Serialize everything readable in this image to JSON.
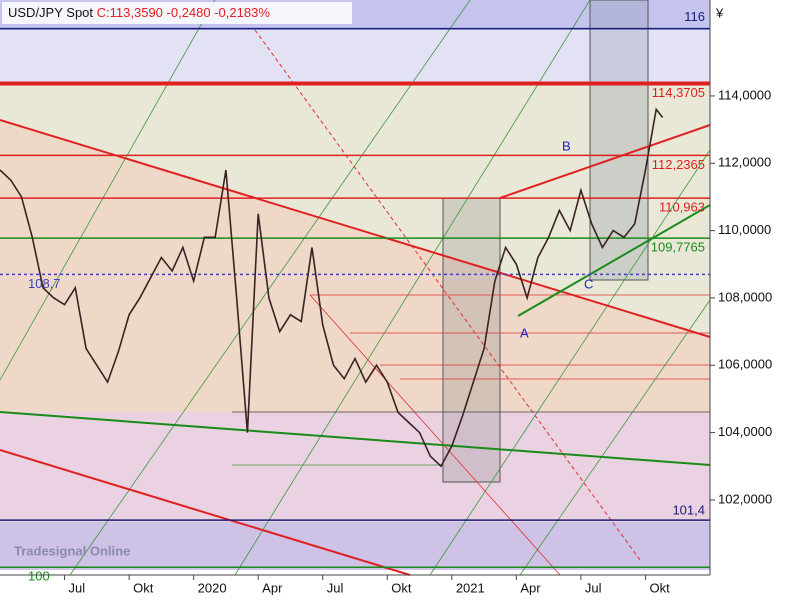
{
  "chart_data": {
    "type": "line",
    "title": "USD/JPY Spot",
    "quote": "C:113,3590 -0,2480 -0,2183%",
    "currency": "¥",
    "logo": "Tradesignal Online",
    "annotations": [
      "A",
      "B",
      "C"
    ],
    "xlim": [
      3,
      36
    ],
    "xticks": [
      {
        "value": 6,
        "label": "Jul"
      },
      {
        "value": 9,
        "label": "Okt"
      },
      {
        "value": 12,
        "label": "2020"
      },
      {
        "value": 15,
        "label": "Apr"
      },
      {
        "value": 18,
        "label": "Jul"
      },
      {
        "value": 21,
        "label": "Okt"
      },
      {
        "value": 24,
        "label": "2021"
      },
      {
        "value": 27,
        "label": "Apr"
      },
      {
        "value": 30,
        "label": "Jul"
      },
      {
        "value": 33,
        "label": "Okt"
      }
    ],
    "ylim": [
      99.77,
      116.85
    ],
    "yticks": [
      {
        "value": 102,
        "label": "102,0000"
      },
      {
        "value": 104,
        "label": "104,0000"
      },
      {
        "value": 106,
        "label": "106,0000"
      },
      {
        "value": 108,
        "label": "108,0000"
      },
      {
        "value": 110,
        "label": "110,0000"
      },
      {
        "value": 112,
        "label": "112,0000"
      },
      {
        "value": 114,
        "label": "114,0000"
      }
    ],
    "levels": [
      {
        "value": 116,
        "label": "116",
        "color": "#1a1a7a"
      },
      {
        "value": 114.3705,
        "label": "114,3705",
        "color": "#e02020"
      },
      {
        "value": 112.2365,
        "label": "112,2365",
        "color": "#e02020"
      },
      {
        "value": 110.963,
        "label": "110,963",
        "color": "#e02020"
      },
      {
        "value": 109.7765,
        "label": "109,7765",
        "color": "#1a8a1a"
      },
      {
        "value": 108.7,
        "label": "108,7",
        "color": "#4040c0"
      },
      {
        "value": 101.4,
        "label": "101,4",
        "color": "#1a1a7a"
      },
      {
        "value": 100,
        "label": "100",
        "color": "#1a8a1a"
      }
    ],
    "series": [
      {
        "name": "USD/JPY Spot",
        "color": "#3a2222",
        "x": [
          3,
          3.5,
          4,
          4.5,
          5,
          5.5,
          6,
          6.5,
          7,
          7.5,
          8,
          8.5,
          9,
          9.5,
          10,
          10.5,
          11,
          11.5,
          12,
          12.5,
          13,
          13.5,
          14,
          14.5,
          15,
          15.5,
          16,
          16.5,
          17,
          17.5,
          18,
          18.5,
          19,
          19.5,
          20,
          20.5,
          21,
          21.5,
          22,
          22.5,
          23,
          23.5,
          24,
          24.5,
          25,
          25.5,
          26,
          26.5,
          27,
          27.5,
          28,
          28.5,
          29,
          29.5,
          30,
          30.5,
          31,
          31.5,
          32,
          32.5,
          33,
          33.5,
          33.8
        ],
        "values": [
          111.8,
          111.5,
          111.0,
          109.8,
          108.3,
          108.0,
          107.8,
          108.3,
          106.5,
          106.0,
          105.5,
          106.4,
          107.5,
          108.0,
          108.6,
          109.2,
          108.8,
          109.5,
          108.5,
          109.8,
          109.8,
          111.8,
          108.0,
          104.0,
          110.5,
          108.0,
          107.0,
          107.5,
          107.3,
          109.5,
          107.2,
          106.0,
          105.6,
          106.2,
          105.5,
          106.0,
          105.5,
          104.6,
          104.3,
          104.0,
          103.3,
          103.0,
          103.6,
          104.5,
          105.5,
          106.5,
          108.5,
          109.5,
          109.0,
          108.0,
          109.2,
          109.8,
          110.6,
          110.0,
          111.2,
          110.2,
          109.5,
          110.0,
          109.8,
          110.2,
          111.8,
          113.6,
          113.36
        ]
      }
    ]
  }
}
